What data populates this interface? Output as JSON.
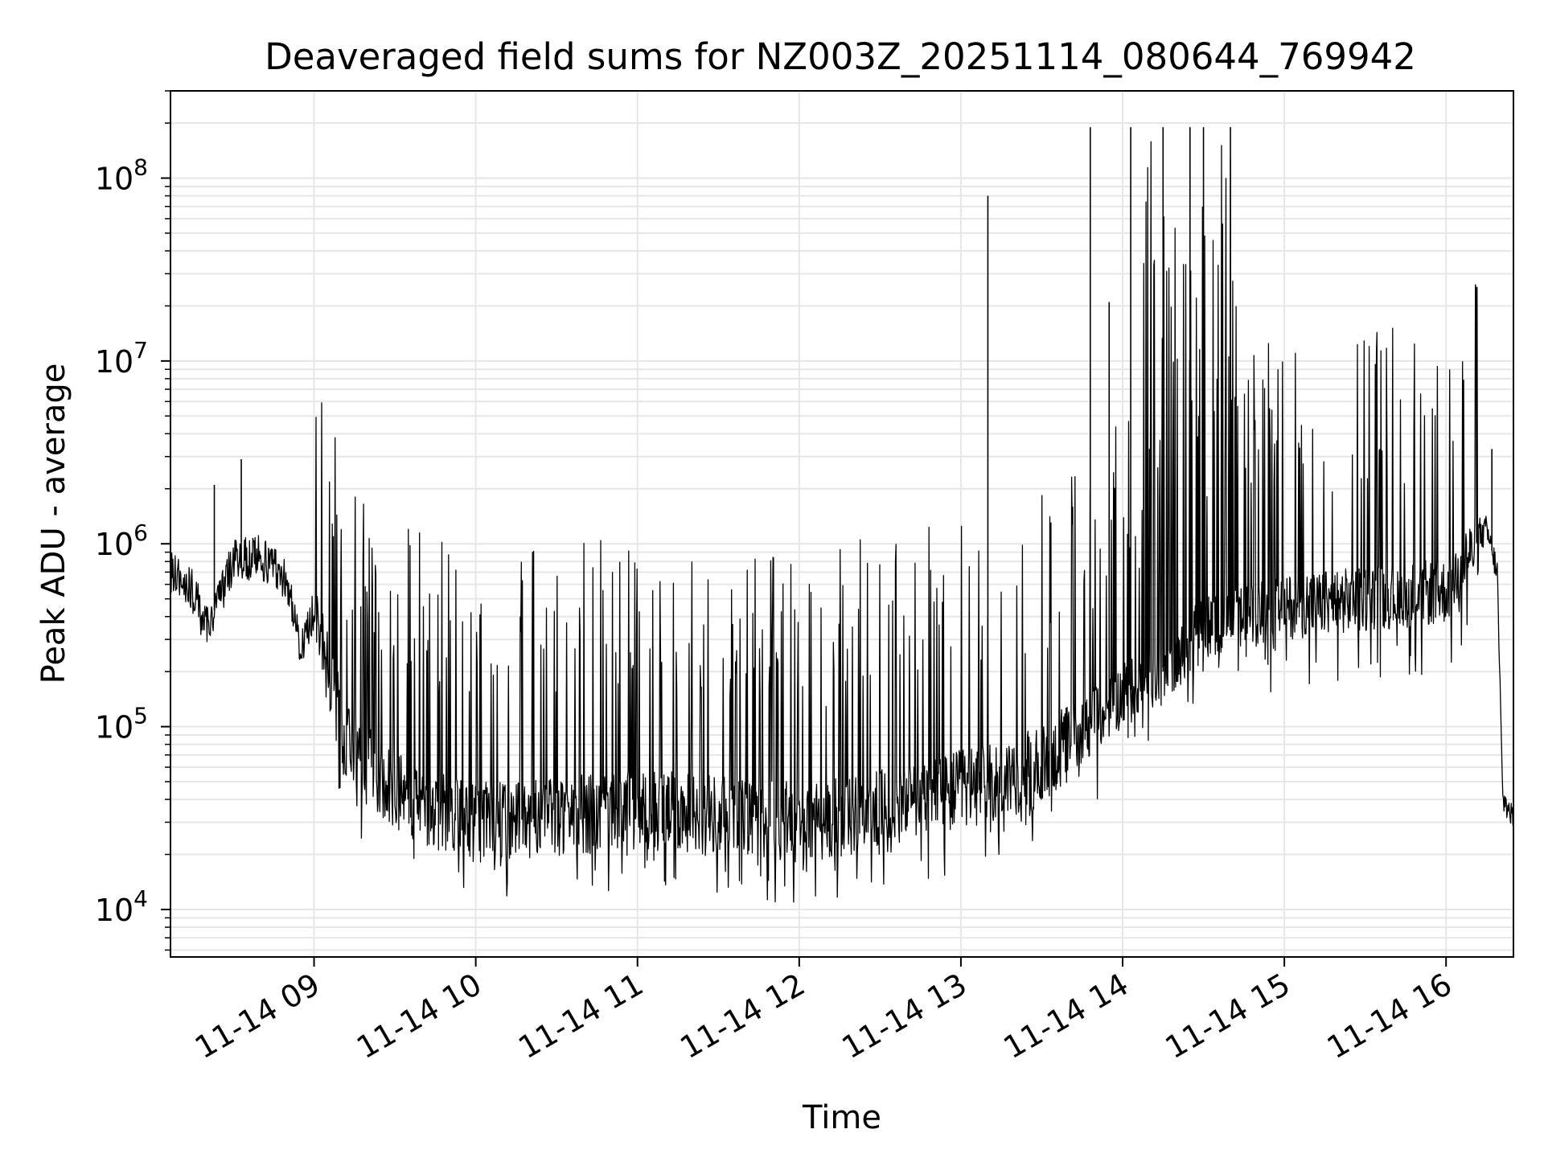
{
  "chart_data": {
    "type": "line",
    "title": "Deaveraged field sums for NZ003Z_20251114_080644_769942",
    "xlabel": "Time",
    "ylabel": "Peak ADU - average",
    "xlim": [
      "2025-11-14T08:06:44",
      "2025-11-14T16:25:00"
    ],
    "ylim": [
      5500,
      300000000
    ],
    "yscale": "log",
    "grid": true,
    "line_color": "#000000",
    "grid_color": "#e6e6e6",
    "x_ticks": [
      {
        "value": "2025-11-14T09:00:00",
        "label": "11-14 09"
      },
      {
        "value": "2025-11-14T10:00:00",
        "label": "11-14 10"
      },
      {
        "value": "2025-11-14T11:00:00",
        "label": "11-14 11"
      },
      {
        "value": "2025-11-14T12:00:00",
        "label": "11-14 12"
      },
      {
        "value": "2025-11-14T13:00:00",
        "label": "11-14 13"
      },
      {
        "value": "2025-11-14T14:00:00",
        "label": "11-14 14"
      },
      {
        "value": "2025-11-14T15:00:00",
        "label": "11-14 15"
      },
      {
        "value": "2025-11-14T16:00:00",
        "label": "11-14 16"
      }
    ],
    "y_ticks": [
      {
        "value": 10000,
        "base": "10",
        "exp": "4"
      },
      {
        "value": 100000,
        "base": "10",
        "exp": "5"
      },
      {
        "value": 1000000,
        "base": "10",
        "exp": "6"
      },
      {
        "value": 10000000,
        "base": "10",
        "exp": "7"
      },
      {
        "value": 100000000,
        "base": "10",
        "exp": "8"
      }
    ],
    "series": [
      {
        "points": [
          [
            "2025-11-14T08:07:00",
            700000
          ],
          [
            "2025-11-14T08:15:00",
            550000
          ],
          [
            "2025-11-14T08:20:00",
            350000
          ],
          [
            "2025-11-14T08:25:00",
            500000
          ],
          [
            "2025-11-14T08:30:00",
            800000
          ],
          [
            "2025-11-14T08:40:00",
            850000
          ],
          [
            "2025-11-14T08:50:00",
            650000
          ],
          [
            "2025-11-14T08:55:00",
            250000
          ],
          [
            "2025-11-14T09:00:00",
            450000
          ],
          [
            "2025-11-14T09:05:00",
            200000
          ],
          [
            "2025-11-14T09:12:00",
            80000
          ],
          [
            "2025-11-14T09:20:00",
            60000
          ],
          [
            "2025-11-14T09:30:00",
            45000
          ],
          [
            "2025-11-14T09:45:00",
            35000
          ],
          [
            "2025-11-14T10:00:00",
            30000
          ],
          [
            "2025-11-14T10:30:00",
            32000
          ],
          [
            "2025-11-14T11:00:00",
            35000
          ],
          [
            "2025-11-14T11:30:00",
            33000
          ],
          [
            "2025-11-14T12:00:00",
            30000
          ],
          [
            "2025-11-14T12:30:00",
            35000
          ],
          [
            "2025-11-14T13:00:00",
            45000
          ],
          [
            "2025-11-14T13:30:00",
            60000
          ],
          [
            "2025-11-14T14:00:00",
            150000
          ],
          [
            "2025-11-14T14:15:00",
            200000
          ],
          [
            "2025-11-14T14:30:00",
            350000
          ],
          [
            "2025-11-14T14:45:00",
            400000
          ],
          [
            "2025-11-14T15:00:00",
            450000
          ],
          [
            "2025-11-14T15:30:00",
            500000
          ],
          [
            "2025-11-14T16:00:00",
            550000
          ],
          [
            "2025-11-14T16:15:00",
            1200000
          ],
          [
            "2025-11-14T16:19:00",
            700000
          ],
          [
            "2025-11-14T16:21:00",
            40000
          ],
          [
            "2025-11-14T16:25:00",
            32000
          ]
        ]
      }
    ],
    "annotations_spikes": [
      [
        "2025-11-14T08:23:00",
        2100000
      ],
      [
        "2025-11-14T08:33:00",
        2900000
      ],
      [
        "2025-11-14T13:10:00",
        80000000
      ],
      [
        "2025-11-14T13:48:00",
        190000000
      ],
      [
        "2025-11-14T13:55:00",
        21000000
      ],
      [
        "2025-11-14T14:03:00",
        190000000
      ],
      [
        "2025-11-14T14:15:00",
        190000000
      ],
      [
        "2025-11-14T14:25:00",
        190000000
      ],
      [
        "2025-11-14T14:30:00",
        190000000
      ],
      [
        "2025-11-14T14:40:00",
        190000000
      ],
      [
        "2025-11-14T16:17:00",
        3300000
      ]
    ]
  }
}
